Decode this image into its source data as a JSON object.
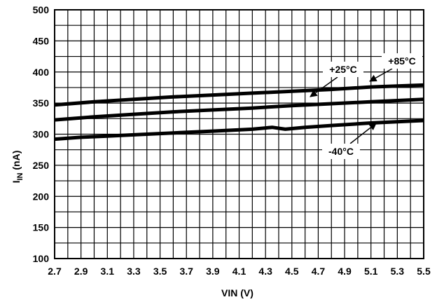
{
  "chart_data": {
    "type": "line",
    "xlabel": "VIN (V)",
    "ylabel": {
      "main": "I",
      "sub": "IN",
      "unit": " (nA)"
    },
    "xlim": [
      2.7,
      5.5
    ],
    "ylim": [
      100,
      500
    ],
    "grid": true,
    "x_ticks": [
      "2.7",
      "2.9",
      "3.1",
      "3.3",
      "3.5",
      "3.7",
      "3.9",
      "4.1",
      "4.3",
      "4.5",
      "4.7",
      "4.9",
      "5.1",
      "5.3",
      "5.5"
    ],
    "x_tick_values": [
      2.7,
      2.9,
      3.1,
      3.3,
      3.5,
      3.7,
      3.9,
      4.1,
      4.3,
      4.5,
      4.7,
      4.9,
      5.1,
      5.3,
      5.5
    ],
    "x_grid_values": [
      2.7,
      2.8,
      2.9,
      3.0,
      3.1,
      3.2,
      3.3,
      3.4,
      3.5,
      3.6,
      3.7,
      3.8,
      3.9,
      4.0,
      4.1,
      4.2,
      4.3,
      4.4,
      4.5,
      4.6,
      4.7,
      4.8,
      4.9,
      5.0,
      5.1,
      5.2,
      5.3,
      5.4,
      5.5
    ],
    "y_ticks": [
      "100",
      "150",
      "200",
      "250",
      "300",
      "350",
      "400",
      "450",
      "500"
    ],
    "y_tick_values": [
      100,
      150,
      200,
      250,
      300,
      350,
      400,
      450,
      500
    ],
    "y_grid_values": [
      100,
      125,
      150,
      175,
      200,
      225,
      250,
      275,
      300,
      325,
      350,
      375,
      400,
      425,
      450,
      475,
      500
    ],
    "series": [
      {
        "name": "+85°C",
        "x": [
          2.7,
          3.0,
          3.3,
          3.6,
          3.9,
          4.2,
          4.5,
          4.8,
          5.1,
          5.5
        ],
        "values": [
          347,
          352,
          356,
          360,
          363,
          366,
          369,
          372,
          376,
          379
        ]
      },
      {
        "name": "+25°C",
        "x": [
          2.7,
          3.0,
          3.3,
          3.6,
          3.9,
          4.2,
          4.5,
          4.8,
          5.1,
          5.5
        ],
        "values": [
          323,
          328,
          332,
          336,
          339,
          342,
          346,
          349,
          352,
          356
        ]
      },
      {
        "name": "-40°C",
        "x": [
          2.7,
          2.9,
          3.1,
          3.3,
          3.6,
          3.9,
          4.2,
          4.35,
          4.45,
          4.6,
          4.8,
          5.1,
          5.5
        ],
        "values": [
          292,
          295,
          297,
          299,
          302,
          305,
          308,
          311,
          308,
          311,
          314,
          318,
          322
        ]
      }
    ],
    "annotations": [
      {
        "text": "+85°C",
        "series": "+85°C"
      },
      {
        "text": "+25°C",
        "series": "+25°C"
      },
      {
        "text": "-40°C",
        "series": "-40°C"
      }
    ]
  }
}
